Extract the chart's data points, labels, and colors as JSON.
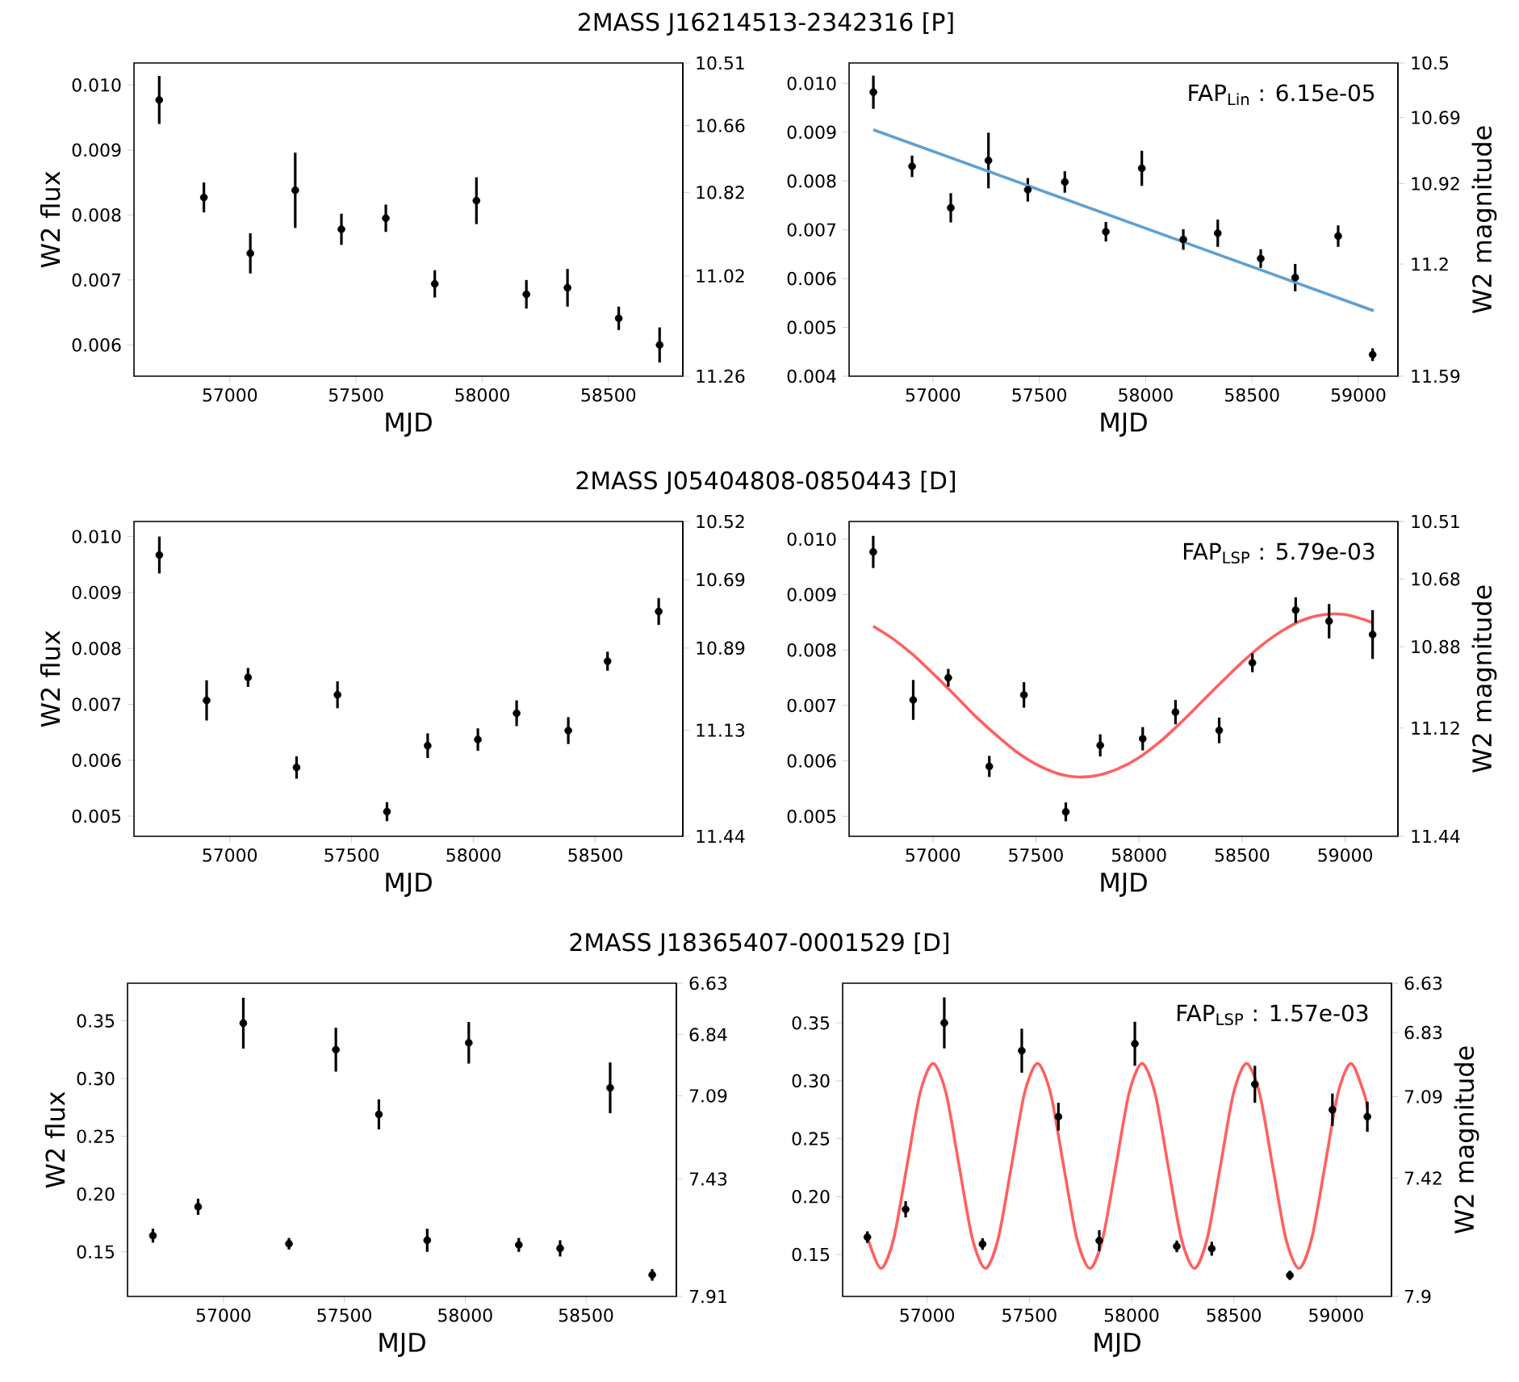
{
  "chart_data": [
    {
      "type": "scatter",
      "title": "2MASS J16214513-2342316 [P]",
      "xlabel": "MJD",
      "ylabel": "W2 flux",
      "xlim": [
        56620,
        58795
      ],
      "xticks": [
        57000,
        57500,
        58000,
        58500
      ],
      "ylim": [
        0.00552,
        0.01034
      ],
      "yticks": [
        0.006,
        0.007,
        0.008,
        0.009,
        {
          "value": 0.01,
          "label": "0.010"
        }
      ],
      "y2lim": [
        11.26,
        10.51
      ],
      "y2ticks": [
        10.51,
        10.66,
        10.82,
        11.02,
        11.26
      ],
      "series": [
        {
          "color": "#000000",
          "marker": "circle",
          "x": [
            56720,
            56897,
            57081,
            57259,
            57442,
            57618,
            57812,
            57977,
            58175,
            58338,
            58541,
            58703
          ],
          "values": [
            0.00977,
            0.00827,
            0.00741,
            0.00838,
            0.00778,
            0.00795,
            0.00694,
            0.00822,
            0.00678,
            0.00688,
            0.00641,
            0.006
          ],
          "errors": [
            0.00037,
            0.00023,
            0.00031,
            0.00058,
            0.00024,
            0.00021,
            0.00021,
            0.00036,
            0.00022,
            0.00029,
            0.00018,
            0.00027
          ]
        }
      ]
    },
    {
      "type": "scatter",
      "xlabel": "MJD",
      "y2label": "W2 magnitude",
      "annotations": [
        "FAP$_{Lin}$ : 6.15e-05"
      ],
      "xlim": [
        56606,
        59186
      ],
      "xticks": [
        57000,
        57500,
        58000,
        58500,
        59000
      ],
      "ylim": [
        0.004,
        0.01042
      ],
      "yticks": [
        0.004,
        0.005,
        0.006,
        0.007,
        0.008,
        0.009,
        {
          "value": 0.01,
          "label": "0.010"
        }
      ],
      "y2lim": [
        11.59,
        10.5
      ],
      "y2ticks": [
        10.5,
        10.69,
        10.92,
        11.2,
        11.59
      ],
      "series": [
        {
          "color": "#000000",
          "marker": "circle",
          "x": [
            56720,
            56902,
            57084,
            57261,
            57446,
            57620,
            57813,
            57982,
            58177,
            58339,
            58541,
            58703,
            58905,
            59067
          ],
          "values": [
            0.00982,
            0.0083,
            0.00745,
            0.00842,
            0.00782,
            0.00798,
            0.00696,
            0.00826,
            0.0068,
            0.00693,
            0.00641,
            0.00602,
            0.00687,
            0.00444
          ],
          "errors": [
            0.00034,
            0.00022,
            0.0003,
            0.00057,
            0.00024,
            0.00022,
            0.0002,
            0.00036,
            0.00021,
            0.00028,
            0.00019,
            0.00028,
            0.00022,
            0.00013
          ]
        },
        {
          "type": "line",
          "marker": "none",
          "color": "#5fa0d2",
          "x": [
            56720,
            59072
          ],
          "values": [
            0.00905,
            0.00534
          ]
        }
      ]
    },
    {
      "type": "scatter",
      "title": "2MASS J05404808-0850443 [D]",
      "xlabel": "MJD",
      "ylabel": "W2 flux",
      "xlim": [
        56607,
        58859
      ],
      "xticks": [
        57000,
        57500,
        58000,
        58500
      ],
      "ylim": [
        0.00464,
        0.01027
      ],
      "yticks": [
        0.005,
        0.006,
        0.007,
        0.008,
        0.009,
        {
          "value": 0.01,
          "label": "0.010"
        }
      ],
      "y2lim": [
        11.44,
        10.52
      ],
      "y2ticks": [
        10.52,
        10.69,
        10.89,
        11.13,
        11.44
      ],
      "series": [
        {
          "color": "#000000",
          "marker": "circle",
          "x": [
            56711,
            56905,
            57075,
            57274,
            57442,
            57645,
            57812,
            58018,
            58177,
            58389,
            58550,
            58760
          ],
          "values": [
            0.00967,
            0.00707,
            0.00748,
            0.00587,
            0.00717,
            0.00508,
            0.00626,
            0.00637,
            0.00684,
            0.00653,
            0.00777,
            0.00866
          ],
          "errors": [
            0.00033,
            0.00036,
            0.00017,
            0.0002,
            0.00024,
            0.00017,
            0.00022,
            0.0002,
            0.00023,
            0.00024,
            0.00017,
            0.00024
          ]
        }
      ]
    },
    {
      "type": "scatter",
      "xlabel": "MJD",
      "y2label": "W2 magnitude",
      "annotations": [
        "FAP$_{LSP}$ : 5.79e-03"
      ],
      "xlim": [
        56594,
        59256
      ],
      "xticks": [
        57000,
        57500,
        58000,
        58500,
        59000
      ],
      "ylim": [
        0.00464,
        0.01032
      ],
      "yticks": [
        0.005,
        0.006,
        0.007,
        0.008,
        0.009,
        {
          "value": 0.01,
          "label": "0.010"
        }
      ],
      "y2lim": [
        11.44,
        10.51
      ],
      "y2ticks": [
        10.51,
        10.68,
        10.88,
        11.12,
        11.44
      ],
      "series": [
        {
          "type": "line",
          "marker": "none",
          "color": "#ff6060",
          "x": [
            56711,
            56800,
            56900,
            57000,
            57100,
            57200,
            57300,
            57400,
            57500,
            57600,
            57700,
            57800,
            57900,
            58000,
            58100,
            58200,
            58300,
            58400,
            58500,
            58600,
            58700,
            58800,
            58900,
            59000,
            59100,
            59133
          ],
          "values": [
            0.00843,
            0.00822,
            0.00793,
            0.00758,
            0.00721,
            0.00683,
            0.00649,
            0.00618,
            0.00594,
            0.00578,
            0.00571,
            0.00574,
            0.00586,
            0.00606,
            0.00634,
            0.00668,
            0.00705,
            0.00742,
            0.00778,
            0.0081,
            0.00836,
            0.00855,
            0.00864,
            0.00864,
            0.00854,
            0.00849
          ]
        },
        {
          "color": "#000000",
          "marker": "circle",
          "x": [
            56711,
            56905,
            57075,
            57274,
            57442,
            57645,
            57812,
            58018,
            58177,
            58389,
            58550,
            58760,
            58922,
            59133
          ],
          "values": [
            0.00977,
            0.0071,
            0.0075,
            0.0059,
            0.00719,
            0.00508,
            0.00628,
            0.0064,
            0.00688,
            0.00655,
            0.00777,
            0.00872,
            0.00852,
            0.00828
          ],
          "errors": [
            0.00029,
            0.00036,
            0.00016,
            0.00019,
            0.00023,
            0.00017,
            0.0002,
            0.00021,
            0.00022,
            0.00023,
            0.00017,
            0.00023,
            0.00031,
            0.00044
          ]
        }
      ]
    },
    {
      "type": "scatter",
      "title": "2MASS J18365407-0001529 [D]",
      "xlabel": "MJD",
      "ylabel": "W2 flux",
      "xlim": [
        56603,
        58874
      ],
      "xticks": [
        57000,
        57500,
        58000,
        58500
      ],
      "ylim": [
        0.1114,
        0.3826
      ],
      "yticks": [
        0.15,
        {
          "value": 0.2,
          "label": "0.20"
        },
        0.25,
        {
          "value": 0.3,
          "label": "0.30"
        },
        0.35
      ],
      "y2lim": [
        7.91,
        6.63
      ],
      "y2ticks": [
        6.63,
        6.84,
        7.09,
        7.43,
        7.91
      ],
      "series": [
        {
          "color": "#000000",
          "marker": "circle",
          "x": [
            56708,
            56895,
            57082,
            57271,
            57465,
            57643,
            57843,
            58015,
            58222,
            58393,
            58600,
            58774
          ],
          "values": [
            0.164,
            0.189,
            0.348,
            0.157,
            0.325,
            0.269,
            0.16,
            0.331,
            0.156,
            0.153,
            0.292,
            0.13
          ],
          "errors": [
            0.006,
            0.007,
            0.022,
            0.005,
            0.019,
            0.013,
            0.01,
            0.018,
            0.006,
            0.007,
            0.022,
            0.005
          ]
        }
      ]
    },
    {
      "type": "scatter",
      "xlabel": "MJD",
      "y2label": "W2 magnitude",
      "annotations": [
        "FAP$_{LSP}$ : 1.57e-03"
      ],
      "xlim": [
        56587,
        59271
      ],
      "xticks": [
        57000,
        57500,
        58000,
        58500,
        59000
      ],
      "ylim": [
        0.1138,
        0.3843
      ],
      "yticks": [
        0.15,
        {
          "value": 0.2,
          "label": "0.20"
        },
        0.25,
        {
          "value": 0.3,
          "label": "0.30"
        },
        0.35
      ],
      "y2lim": [
        7.9,
        6.63
      ],
      "y2ticks": [
        6.63,
        6.83,
        7.09,
        7.42,
        7.9
      ],
      "series": [
        {
          "type": "line",
          "marker": "none",
          "color": "#ff6060",
          "x": [
            56710,
            56774,
            56837,
            56901,
            56965,
            57029,
            57093,
            57157,
            57221,
            57285,
            57348,
            57412,
            57476,
            57540,
            57604,
            57668,
            57732,
            57796,
            57859,
            57923,
            57987,
            58051,
            58115,
            58179,
            58243,
            58307,
            58370,
            58434,
            58498,
            58562,
            58626,
            58690,
            58754,
            58818,
            58881,
            58945,
            59009,
            59073,
            59137,
            59153
          ],
          "values": [
            0.164,
            0.138,
            0.164,
            0.226,
            0.289,
            0.315,
            0.289,
            0.226,
            0.164,
            0.138,
            0.164,
            0.226,
            0.289,
            0.315,
            0.289,
            0.226,
            0.164,
            0.138,
            0.164,
            0.226,
            0.289,
            0.315,
            0.289,
            0.226,
            0.164,
            0.138,
            0.164,
            0.226,
            0.289,
            0.315,
            0.289,
            0.226,
            0.164,
            0.138,
            0.164,
            0.226,
            0.289,
            0.315,
            0.289,
            0.276
          ]
        },
        {
          "color": "#000000",
          "marker": "circle",
          "x": [
            56708,
            56895,
            57084,
            57271,
            57463,
            57642,
            57842,
            58016,
            58221,
            58392,
            58603,
            58774,
            58982,
            59153
          ],
          "values": [
            0.165,
            0.189,
            0.35,
            0.159,
            0.326,
            0.269,
            0.162,
            0.332,
            0.157,
            0.155,
            0.297,
            0.132,
            0.275,
            0.269
          ],
          "errors": [
            0.005,
            0.007,
            0.022,
            0.005,
            0.019,
            0.012,
            0.009,
            0.019,
            0.005,
            0.006,
            0.016,
            0.004,
            0.014,
            0.013
          ]
        }
      ]
    }
  ]
}
